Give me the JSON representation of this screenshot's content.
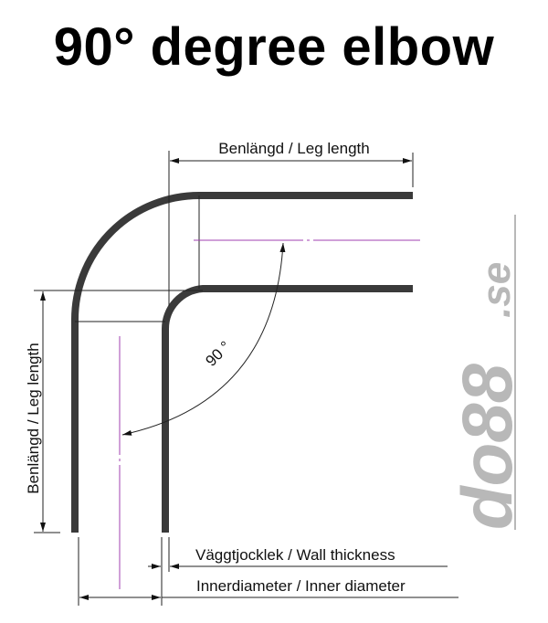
{
  "title": "90° degree elbow",
  "labels": {
    "top_leg": "Benlängd / Leg length",
    "side_leg": "Benlängd / Leg length",
    "angle": "90 °",
    "wall": "Väggtjocklek / Wall thickness",
    "inner": "Innerdiameter / Inner diameter"
  },
  "logo": {
    "text_main": "do88",
    "text_suffix": ".se"
  },
  "colors": {
    "tube": "#3a3a3a",
    "centerline": "#a040b0",
    "logo": "#b8b8b8"
  }
}
